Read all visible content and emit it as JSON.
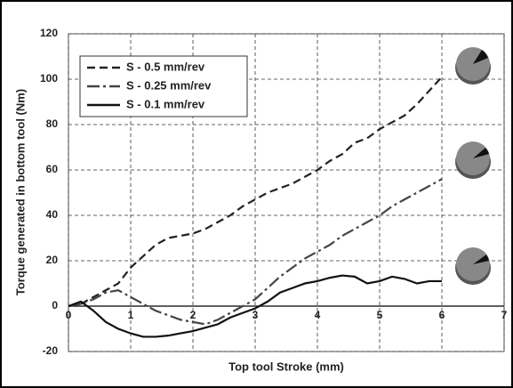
{
  "chart_data": {
    "type": "line",
    "xlabel": "Top tool Stroke (mm)",
    "ylabel": "Torque generated in bottom tool (Nm)",
    "x": [
      0,
      0.2,
      0.4,
      0.6,
      0.8,
      1,
      1.2,
      1.4,
      1.6,
      1.8,
      2,
      2.2,
      2.4,
      2.6,
      2.8,
      3,
      3.2,
      3.4,
      3.6,
      3.8,
      4,
      4.2,
      4.4,
      4.6,
      4.8,
      5,
      5.2,
      5.4,
      5.6,
      5.8,
      6
    ],
    "series": [
      {
        "name": "S - 0.5 mm/rev",
        "color": "#222222",
        "dash": "9,5",
        "values": [
          0,
          1,
          4,
          7,
          10,
          17,
          22,
          27,
          30,
          31,
          32,
          34,
          37,
          40,
          44,
          47,
          50,
          52,
          54,
          57,
          60,
          64,
          67,
          72,
          74,
          78,
          81,
          84,
          89,
          95,
          101
        ]
      },
      {
        "name": "S - 0.25 mm/rev",
        "color": "#444444",
        "dash": "14,4,3,4",
        "values": [
          0,
          1,
          3,
          6,
          7,
          4,
          1,
          -2,
          -4,
          -6,
          -7,
          -8,
          -6,
          -3,
          0,
          3,
          8,
          13,
          17,
          21,
          24,
          27,
          31,
          34,
          37,
          40,
          44,
          47,
          50,
          53,
          56
        ]
      },
      {
        "name": "S - 0.1 mm/rev",
        "color": "#111111",
        "dash": "none",
        "values": [
          0,
          2,
          -2,
          -7,
          -10,
          -12,
          -13.5,
          -13.5,
          -13,
          -12,
          -11,
          -9.5,
          -8,
          -5,
          -3,
          -1,
          2,
          6,
          8,
          10,
          11,
          12.5,
          13.5,
          13,
          10,
          11,
          13,
          12,
          10,
          11,
          11
        ]
      }
    ],
    "xlim": [
      0,
      7
    ],
    "xticks": [
      0,
      1,
      2,
      3,
      4,
      5,
      6,
      7
    ],
    "ylim": [
      -20,
      120
    ],
    "yticks": [
      -20,
      0,
      20,
      40,
      60,
      80,
      100,
      120
    ],
    "grid": true,
    "legend": "upper left"
  }
}
